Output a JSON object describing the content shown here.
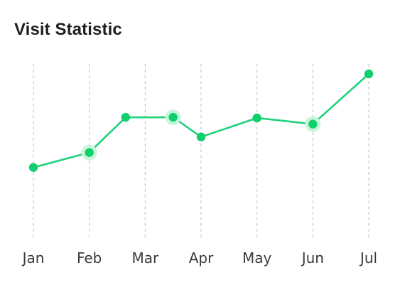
{
  "card": {
    "title": "Visit Statistic"
  },
  "colors": {
    "line": "#1ed27a",
    "point": "#10cf6d",
    "halo": "#c9f5dc",
    "gridline": "#c8c8c8",
    "tick_text": "#3a3a3a",
    "title_text": "#1f1f1f"
  },
  "chart_data": {
    "type": "line",
    "categories": [
      "Jan",
      "Feb",
      "Mar",
      "Apr",
      "May",
      "Jun",
      "Jul"
    ],
    "x_tick_labels": [
      "Jan",
      "Feb",
      "Mar",
      "Apr",
      "May",
      "Jun",
      "Jul"
    ],
    "points": [
      {
        "x": 1.0,
        "y": 100,
        "highlighted": false
      },
      {
        "x": 2.0,
        "y": 122,
        "highlighted": true
      },
      {
        "x": 2.65,
        "y": 174,
        "highlighted": false
      },
      {
        "x": 3.5,
        "y": 174,
        "highlighted": true
      },
      {
        "x": 4.0,
        "y": 145,
        "highlighted": false
      },
      {
        "x": 5.0,
        "y": 173,
        "highlighted": false
      },
      {
        "x": 6.0,
        "y": 164,
        "highlighted": true
      },
      {
        "x": 7.0,
        "y": 238,
        "highlighted": false
      }
    ],
    "xlim": [
      1,
      7
    ],
    "ylim": [
      0,
      238
    ],
    "grid": "vertical-dashed",
    "legend": "none",
    "xlabel": "",
    "ylabel": ""
  }
}
